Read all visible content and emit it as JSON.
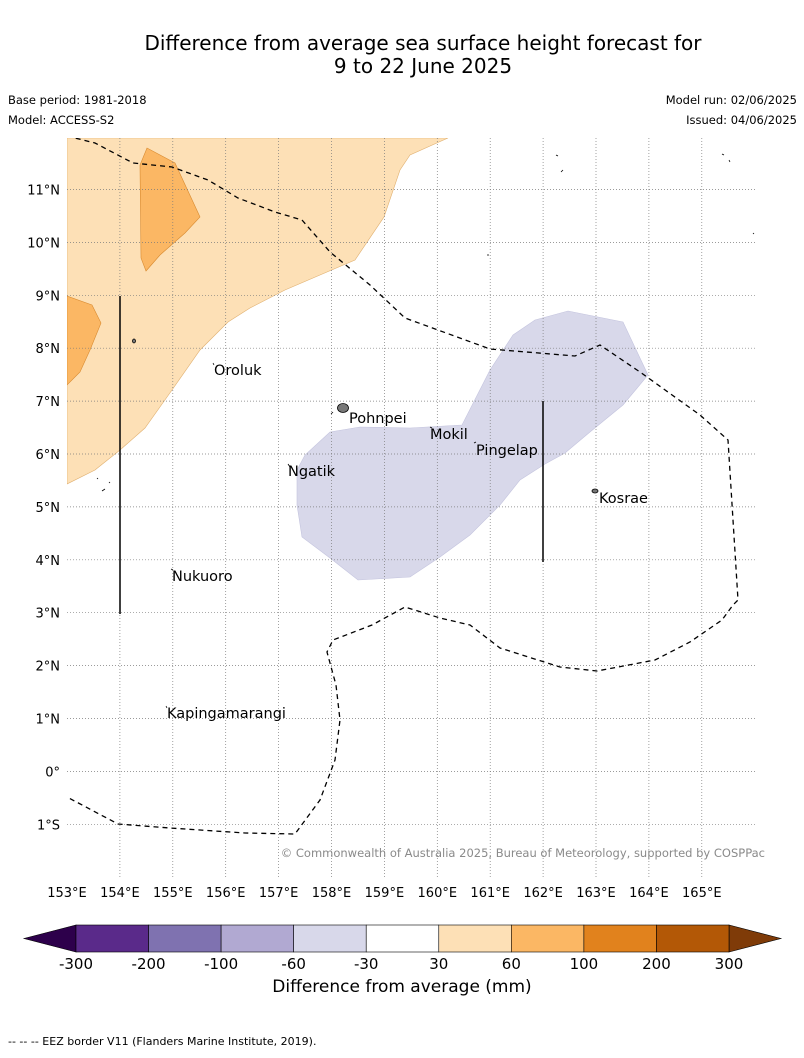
{
  "title_line1": "Difference from average sea surface height forecast for",
  "title_line2": "9 to 22 June 2025",
  "meta": {
    "base_period": "Base period: 1981-2018",
    "model": "Model: ACCESS-S2",
    "model_run": "Model run: 02/06/2025",
    "issued": "Issued: 04/06/2025"
  },
  "map": {
    "lon_labels": [
      "153°E",
      "154°E",
      "155°E",
      "156°E",
      "157°E",
      "158°E",
      "159°E",
      "160°E",
      "161°E",
      "162°E",
      "163°E",
      "164°E",
      "165°E"
    ],
    "lat_labels": [
      "11°N",
      "10°N",
      "9°N",
      "8°N",
      "7°N",
      "6°N",
      "5°N",
      "4°N",
      "3°N",
      "2°N",
      "1°N",
      "0°",
      "1°S"
    ],
    "places": [
      "Oroluk",
      "Pohnpei",
      "Mokil",
      "Pingelap",
      "Ngatik",
      "Kosrae",
      "Nukuoro",
      "Kapingamarangi"
    ],
    "copyright": "© Commonwealth of Australia 2025, Bureau of Meteorology, supported by COSPPac"
  },
  "colorbar": {
    "ticks": [
      "-300",
      "-200",
      "-100",
      "-60",
      "-30",
      "30",
      "60",
      "100",
      "200",
      "300"
    ],
    "colors": [
      "#5a2a8a",
      "#7f72b0",
      "#b1a9d2",
      "#d8d8ea",
      "#ffffff",
      "#fde0b6",
      "#fbb764",
      "#e1821d",
      "#b35806"
    ],
    "label": "Difference from average (mm)"
  },
  "footnote": "--  --  -- EEZ border V11 (Flanders Marine Institute, 2019)."
}
